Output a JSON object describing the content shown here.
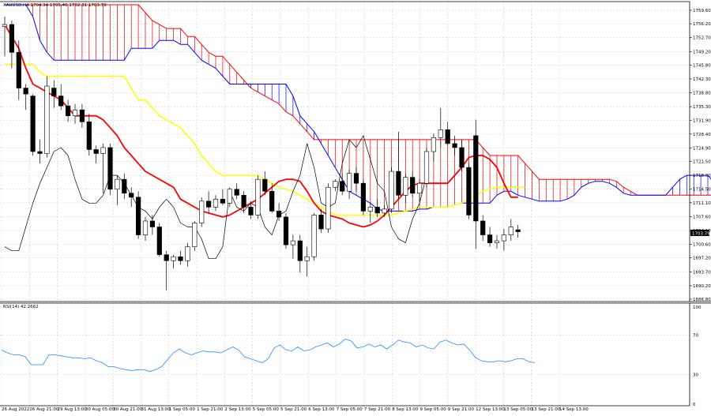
{
  "header": {
    "symbol_line": "XAUUSD,H4  1704.34 1705.46 1702.31 1703.79",
    "rsi_label": "RSI(14) 42.2662"
  },
  "price_axis": {
    "ticks": [
      "1759.60",
      "1756.20",
      "1752.70",
      "1749.20",
      "1745.80",
      "1742.30",
      "1738.80",
      "1735.30",
      "1731.90",
      "1728.40",
      "1724.90",
      "1721.50",
      "1718.00",
      "1714.50",
      "1711.10",
      "1707.60",
      "1704.10",
      "1700.60",
      "1697.20",
      "1693.70",
      "1690.20",
      "1686.80"
    ],
    "current_price": "1703.79"
  },
  "rsi_axis": {
    "ticks": [
      "100",
      "70",
      "30",
      "0"
    ]
  },
  "time_axis": {
    "labels": [
      "26 Aug 2022",
      "26 Aug 21:00",
      "29 Aug 13:00",
      "30 Aug 05:00",
      "30 Aug 21:00",
      "31 Aug 13:00",
      "1 Sep 05:00",
      "1 Sep 21:00",
      "2 Sep 13:00",
      "5 Sep 05:00",
      "5 Sep 21:00",
      "6 Sep 13:00",
      "7 Sep 05:00",
      "7 Sep 21:00",
      "8 Sep 13:00",
      "9 Sep 05:00",
      "9 Sep 21:00",
      "12 Sep 13:00",
      "13 Sep 05:00",
      "13 Sep 21:00",
      "14 Sep 13:00"
    ]
  },
  "chart_data": {
    "type": "candlestick",
    "symbol": "XAUUSD",
    "timeframe": "H4",
    "ylim": [
      1686.8,
      1761.0
    ],
    "grid": true,
    "candles": [
      {
        "o": 1755.5,
        "h": 1758.0,
        "l": 1748.0,
        "c": 1756.0
      },
      {
        "o": 1756.0,
        "h": 1757.0,
        "l": 1745.0,
        "c": 1749.0
      },
      {
        "o": 1749.0,
        "h": 1752.0,
        "l": 1737.0,
        "c": 1740.0
      },
      {
        "o": 1740.0,
        "h": 1741.0,
        "l": 1734.5,
        "c": 1738.5
      },
      {
        "o": 1738.0,
        "h": 1738.5,
        "l": 1723.0,
        "c": 1724.0
      },
      {
        "o": 1724.0,
        "h": 1727.0,
        "l": 1721.0,
        "c": 1723.5
      },
      {
        "o": 1723.5,
        "h": 1743.0,
        "l": 1722.5,
        "c": 1740.5
      },
      {
        "o": 1740.0,
        "h": 1742.0,
        "l": 1735.0,
        "c": 1738.0
      },
      {
        "o": 1738.0,
        "h": 1741.0,
        "l": 1734.5,
        "c": 1735.5
      },
      {
        "o": 1735.5,
        "h": 1737.0,
        "l": 1731.5,
        "c": 1733.0
      },
      {
        "o": 1733.0,
        "h": 1736.0,
        "l": 1731.0,
        "c": 1734.5
      },
      {
        "o": 1734.5,
        "h": 1736.0,
        "l": 1730.0,
        "c": 1731.5
      },
      {
        "o": 1731.5,
        "h": 1733.5,
        "l": 1723.0,
        "c": 1724.5
      },
      {
        "o": 1724.5,
        "h": 1725.5,
        "l": 1721.0,
        "c": 1723.5
      },
      {
        "o": 1723.5,
        "h": 1726.0,
        "l": 1713.5,
        "c": 1725.0
      },
      {
        "o": 1725.0,
        "h": 1726.0,
        "l": 1713.0,
        "c": 1714.5
      },
      {
        "o": 1714.5,
        "h": 1718.0,
        "l": 1710.5,
        "c": 1717.0
      },
      {
        "o": 1717.0,
        "h": 1718.5,
        "l": 1712.0,
        "c": 1713.5
      },
      {
        "o": 1713.5,
        "h": 1715.0,
        "l": 1710.0,
        "c": 1712.5
      },
      {
        "o": 1712.5,
        "h": 1714.0,
        "l": 1702.0,
        "c": 1703.0
      },
      {
        "o": 1703.0,
        "h": 1707.5,
        "l": 1701.5,
        "c": 1706.5
      },
      {
        "o": 1706.5,
        "h": 1708.0,
        "l": 1703.0,
        "c": 1705.0
      },
      {
        "o": 1705.0,
        "h": 1706.0,
        "l": 1697.5,
        "c": 1698.0
      },
      {
        "o": 1698.0,
        "h": 1699.0,
        "l": 1689.0,
        "c": 1696.5
      },
      {
        "o": 1696.5,
        "h": 1698.0,
        "l": 1694.5,
        "c": 1697.5
      },
      {
        "o": 1697.5,
        "h": 1699.0,
        "l": 1695.5,
        "c": 1696.5
      },
      {
        "o": 1696.5,
        "h": 1701.0,
        "l": 1695.0,
        "c": 1700.0
      },
      {
        "o": 1700.0,
        "h": 1706.5,
        "l": 1699.0,
        "c": 1706.0
      },
      {
        "o": 1706.0,
        "h": 1712.5,
        "l": 1705.0,
        "c": 1711.5
      },
      {
        "o": 1711.5,
        "h": 1714.0,
        "l": 1708.5,
        "c": 1710.0
      },
      {
        "o": 1710.0,
        "h": 1713.0,
        "l": 1709.0,
        "c": 1712.0
      },
      {
        "o": 1712.0,
        "h": 1714.5,
        "l": 1710.5,
        "c": 1711.0
      },
      {
        "o": 1711.0,
        "h": 1715.0,
        "l": 1710.0,
        "c": 1714.5
      },
      {
        "o": 1714.5,
        "h": 1716.0,
        "l": 1712.0,
        "c": 1713.0
      },
      {
        "o": 1713.0,
        "h": 1714.0,
        "l": 1708.5,
        "c": 1710.0
      },
      {
        "o": 1710.0,
        "h": 1711.5,
        "l": 1707.0,
        "c": 1708.0
      },
      {
        "o": 1708.0,
        "h": 1718.0,
        "l": 1707.0,
        "c": 1717.0
      },
      {
        "o": 1717.0,
        "h": 1719.0,
        "l": 1713.0,
        "c": 1714.0
      },
      {
        "o": 1714.0,
        "h": 1716.0,
        "l": 1708.5,
        "c": 1709.0
      },
      {
        "o": 1709.0,
        "h": 1711.0,
        "l": 1706.5,
        "c": 1707.5
      },
      {
        "o": 1707.5,
        "h": 1708.5,
        "l": 1699.5,
        "c": 1700.5
      },
      {
        "o": 1700.5,
        "h": 1703.0,
        "l": 1697.0,
        "c": 1701.5
      },
      {
        "o": 1701.5,
        "h": 1703.0,
        "l": 1693.5,
        "c": 1696.5
      },
      {
        "o": 1696.5,
        "h": 1700.0,
        "l": 1692.5,
        "c": 1697.5
      },
      {
        "o": 1697.5,
        "h": 1708.5,
        "l": 1696.5,
        "c": 1708.0
      },
      {
        "o": 1708.0,
        "h": 1709.5,
        "l": 1703.5,
        "c": 1704.5
      },
      {
        "o": 1704.5,
        "h": 1716.0,
        "l": 1703.5,
        "c": 1715.0
      },
      {
        "o": 1715.0,
        "h": 1717.0,
        "l": 1714.0,
        "c": 1716.5
      },
      {
        "o": 1716.5,
        "h": 1718.5,
        "l": 1713.0,
        "c": 1714.0
      },
      {
        "o": 1714.0,
        "h": 1719.5,
        "l": 1712.0,
        "c": 1718.5
      },
      {
        "o": 1718.5,
        "h": 1720.0,
        "l": 1714.0,
        "c": 1716.0
      },
      {
        "o": 1716.0,
        "h": 1717.0,
        "l": 1708.0,
        "c": 1709.0
      },
      {
        "o": 1709.0,
        "h": 1711.0,
        "l": 1706.0,
        "c": 1710.0
      },
      {
        "o": 1710.0,
        "h": 1712.0,
        "l": 1707.5,
        "c": 1708.5
      },
      {
        "o": 1708.5,
        "h": 1710.5,
        "l": 1707.5,
        "c": 1709.5
      },
      {
        "o": 1709.5,
        "h": 1720.0,
        "l": 1708.5,
        "c": 1719.0
      },
      {
        "o": 1719.0,
        "h": 1729.0,
        "l": 1712.0,
        "c": 1713.0
      },
      {
        "o": 1713.0,
        "h": 1718.5,
        "l": 1711.0,
        "c": 1717.5
      },
      {
        "o": 1717.5,
        "h": 1719.0,
        "l": 1712.5,
        "c": 1713.5
      },
      {
        "o": 1713.5,
        "h": 1717.0,
        "l": 1711.5,
        "c": 1716.0
      },
      {
        "o": 1716.0,
        "h": 1725.0,
        "l": 1715.0,
        "c": 1724.0
      },
      {
        "o": 1724.0,
        "h": 1728.5,
        "l": 1721.5,
        "c": 1727.5
      },
      {
        "o": 1727.5,
        "h": 1735.0,
        "l": 1725.0,
        "c": 1729.5
      },
      {
        "o": 1729.5,
        "h": 1731.5,
        "l": 1725.5,
        "c": 1726.0
      },
      {
        "o": 1726.0,
        "h": 1728.0,
        "l": 1723.0,
        "c": 1725.0
      },
      {
        "o": 1725.0,
        "h": 1727.0,
        "l": 1719.0,
        "c": 1720.0
      },
      {
        "o": 1720.0,
        "h": 1721.0,
        "l": 1707.0,
        "c": 1708.0
      },
      {
        "o": 1728.0,
        "h": 1732.0,
        "l": 1699.5,
        "c": 1706.5
      },
      {
        "o": 1706.5,
        "h": 1708.0,
        "l": 1701.5,
        "c": 1703.0
      },
      {
        "o": 1703.0,
        "h": 1705.0,
        "l": 1700.0,
        "c": 1701.0
      },
      {
        "o": 1701.0,
        "h": 1703.0,
        "l": 1699.5,
        "c": 1701.5
      },
      {
        "o": 1701.5,
        "h": 1704.5,
        "l": 1699.0,
        "c": 1703.0
      },
      {
        "o": 1703.0,
        "h": 1707.0,
        "l": 1701.5,
        "c": 1705.0
      },
      {
        "o": 1704.3,
        "h": 1705.5,
        "l": 1702.3,
        "c": 1703.8
      }
    ],
    "tenkan": [
      1756,
      1753,
      1750,
      1745,
      1741,
      1740,
      1739,
      1738,
      1737,
      1735,
      1733,
      1733,
      1733,
      1733,
      1732,
      1730,
      1728,
      1725,
      1723,
      1721,
      1719,
      1718,
      1717,
      1716,
      1715,
      1712,
      1711,
      1710,
      1709,
      1708.5,
      1708,
      1707.5,
      1708,
      1709,
      1710,
      1711,
      1712,
      1713.5,
      1715,
      1716.5,
      1717,
      1717,
      1716.5,
      1714,
      1711,
      1709,
      1708,
      1707.5,
      1707,
      1706,
      1705.5,
      1705,
      1705.5,
      1706.5,
      1708,
      1710,
      1712,
      1714,
      1715.5,
      1716,
      1716,
      1716,
      1716,
      1716,
      1718,
      1720,
      1722.5,
      1723,
      1723,
      1722,
      1720,
      1716,
      1712.5,
      1712.5
    ],
    "kijun": [
      1746,
      1746,
      1746,
      1746,
      1746,
      1744,
      1743,
      1743,
      1743,
      1743,
      1743,
      1743,
      1743,
      1743,
      1743,
      1743,
      1743,
      1743,
      1740,
      1737,
      1737,
      1735,
      1733,
      1732,
      1731,
      1730,
      1728,
      1726,
      1723,
      1721,
      1719,
      1718,
      1718,
      1718,
      1718,
      1718,
      1718,
      1717,
      1716,
      1715,
      1714.5,
      1714,
      1713,
      1712,
      1711,
      1710,
      1709,
      1708,
      1708,
      1708,
      1708,
      1708,
      1708,
      1708,
      1708,
      1708,
      1708.5,
      1709,
      1709.5,
      1710,
      1710,
      1710,
      1710,
      1710,
      1710.5,
      1711,
      1712,
      1713,
      1714,
      1714.5,
      1715,
      1715,
      1715,
      1715,
      1715
    ],
    "senkou_a": [
      1761,
      1761,
      1761,
      1761,
      1761,
      1761,
      1761,
      1761,
      1761,
      1761,
      1761,
      1761,
      1761,
      1761,
      1761,
      1761,
      1761,
      1761,
      1761,
      1761,
      1759,
      1757,
      1756,
      1755,
      1755,
      1755,
      1753,
      1753,
      1751,
      1749,
      1748,
      1748,
      1746,
      1744,
      1742,
      1740,
      1739,
      1738,
      1737,
      1736,
      1734,
      1733,
      1731,
      1729,
      1727,
      1727,
      1727,
      1727,
      1727,
      1727,
      1727,
      1727,
      1727,
      1727,
      1727,
      1727,
      1727,
      1727,
      1727,
      1727,
      1727,
      1727,
      1727,
      1727,
      1727,
      1727,
      1727,
      1727,
      1725,
      1723,
      1723,
      1723,
      1723,
      1723,
      1721,
      1719,
      1717,
      1717,
      1717,
      1717,
      1717,
      1717,
      1717,
      1717,
      1717,
      1717,
      1717,
      1716.5,
      1715,
      1714,
      1713,
      1713,
      1713,
      1713,
      1713,
      1713,
      1713,
      1713,
      1713,
      1713,
      1713,
      1713
    ],
    "senkou_b": [
      1761,
      1761,
      1761,
      1761,
      1758,
      1752,
      1749,
      1747,
      1747,
      1747,
      1747,
      1747,
      1747,
      1747,
      1747,
      1747,
      1747,
      1747,
      1750,
      1750,
      1750,
      1750,
      1752,
      1752,
      1752,
      1751,
      1751,
      1749,
      1747,
      1746,
      1745,
      1743,
      1741,
      1741,
      1741,
      1741,
      1741,
      1741,
      1741,
      1741,
      1741,
      1738,
      1733,
      1731,
      1729,
      1726,
      1723,
      1720,
      1717,
      1714,
      1713,
      1712,
      1711,
      1709.5,
      1709,
      1709,
      1709,
      1709,
      1709,
      1709.5,
      1709.5,
      1710,
      1710,
      1710,
      1710.5,
      1711,
      1711,
      1711,
      1711,
      1711,
      1713,
      1714,
      1714,
      1713,
      1712.5,
      1712,
      1711.5,
      1711.5,
      1711.5,
      1711.5,
      1712,
      1713,
      1715,
      1716,
      1716.5,
      1716.5,
      1716,
      1715,
      1713.5,
      1713,
      1713,
      1713,
      1713,
      1713,
      1713,
      1715,
      1717,
      1718,
      1718,
      1718,
      1718,
      1716,
      1715
    ],
    "chikou": [
      1700,
      1699,
      1699,
      1705,
      1711,
      1716,
      1720,
      1724,
      1725,
      1723,
      1717,
      1712,
      1711,
      1711,
      1713,
      1718,
      1718,
      1716,
      1713,
      1710,
      1709,
      1707,
      1710,
      1712,
      1710,
      1706,
      1705,
      1705,
      1702,
      1697,
      1697,
      1700,
      1714,
      1710,
      1709,
      1711,
      1710,
      1705,
      1703,
      1708,
      1709,
      1714,
      1718,
      1726,
      1720,
      1711,
      1710,
      1711,
      1721,
      1727,
      1725,
      1728,
      1722,
      1716,
      1714,
      1705,
      1702,
      1701,
      1707,
      1711,
      1718
    ],
    "rsi": [
      55,
      52,
      50,
      50,
      48,
      40,
      40,
      40,
      50,
      50,
      49,
      48,
      47,
      47,
      46,
      47,
      44,
      42,
      38,
      38,
      36,
      35,
      34,
      35,
      35,
      33,
      35,
      38,
      45,
      52,
      56,
      52,
      50,
      52,
      54,
      53,
      53,
      52,
      55,
      58,
      55,
      48,
      46,
      44,
      42,
      46,
      57,
      60,
      55,
      54,
      58,
      54,
      55,
      58,
      60,
      62,
      58,
      61,
      66,
      64,
      57,
      58,
      61,
      58,
      60,
      56,
      60,
      65,
      63,
      62,
      58,
      60,
      57,
      56,
      63,
      65,
      62,
      60,
      61,
      55,
      47,
      44,
      43,
      43,
      44,
      43,
      44,
      46,
      46,
      43,
      42
    ]
  }
}
